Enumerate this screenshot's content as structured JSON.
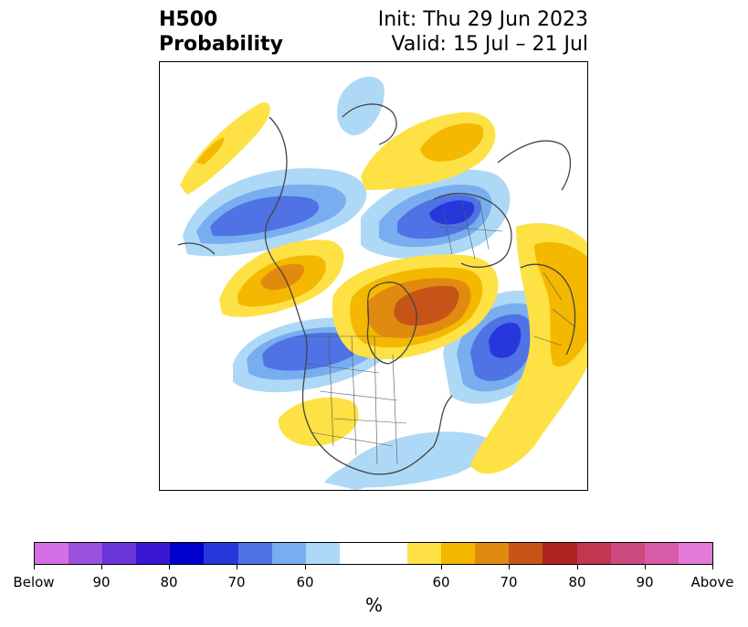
{
  "title": {
    "line1": "H500",
    "line2": "Probability"
  },
  "subtitle": {
    "init": "Init: Thu 29 Jun 2023",
    "valid": "Valid: 15 Jul – 21 Jul"
  },
  "colorbar": {
    "unit_label": "%",
    "tick_labels": [
      "Below",
      "90",
      "80",
      "70",
      "60",
      "60",
      "70",
      "80",
      "90",
      "Above"
    ],
    "below_colors": [
      "#d46fe6",
      "#9a52de",
      "#6a35d6",
      "#3a18d2",
      "#0000cc",
      "#2638dc",
      "#4f72e4",
      "#78aef0",
      "#aed9f6"
    ],
    "neutral_color": "#ffffff",
    "above_colors": [
      "#fee144",
      "#f4b800",
      "#e08b10",
      "#c65418",
      "#b02222",
      "#c23650",
      "#cc4a80",
      "#d95ca8",
      "#e47ad8"
    ]
  },
  "map": {
    "projection": "north-polar-stereographic",
    "region": "Northern Hemisphere",
    "field": "500 hPa height anomaly probability"
  }
}
